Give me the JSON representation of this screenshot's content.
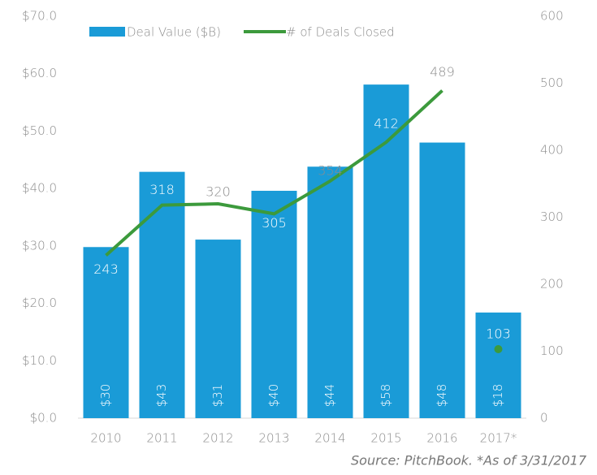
{
  "chart_data": {
    "type": "bar_line",
    "categories": [
      "2010",
      "2011",
      "2012",
      "2013",
      "2014",
      "2015",
      "2016",
      "2017*"
    ],
    "series": [
      {
        "name": "Deal Value ($B)",
        "color": "#1a9bd7",
        "type": "bar",
        "values": [
          29.8,
          42.9,
          31.1,
          39.6,
          43.8,
          58.1,
          48.0,
          18.4
        ],
        "value_labels": [
          "$30",
          "$43",
          "$31",
          "$40",
          "$44",
          "$58",
          "$48",
          "$18"
        ]
      },
      {
        "name": "# of Deals Closed",
        "color": "#3c9a3c",
        "type": "line",
        "axis": "y2",
        "values": [
          243,
          318,
          320,
          305,
          354,
          412,
          489,
          103
        ],
        "connect_last": false
      }
    ],
    "ylim": [
      0,
      70
    ],
    "yticks": [
      {
        "value": 0,
        "label": "$0.0"
      },
      {
        "value": 10,
        "label": "$10.0"
      },
      {
        "value": 20,
        "label": "$20.0"
      },
      {
        "value": 30,
        "label": "$30.0"
      },
      {
        "value": 40,
        "label": "$40.0"
      },
      {
        "value": 50,
        "label": "$50.0"
      },
      {
        "value": 60,
        "label": "$60.0"
      },
      {
        "value": 70,
        "label": "$70.0"
      }
    ],
    "y2lim": [
      0,
      600
    ],
    "y2ticks": [
      0,
      100,
      200,
      300,
      400,
      500,
      600
    ],
    "source": "Source: PitchBook. *As of 3/31/2017"
  }
}
